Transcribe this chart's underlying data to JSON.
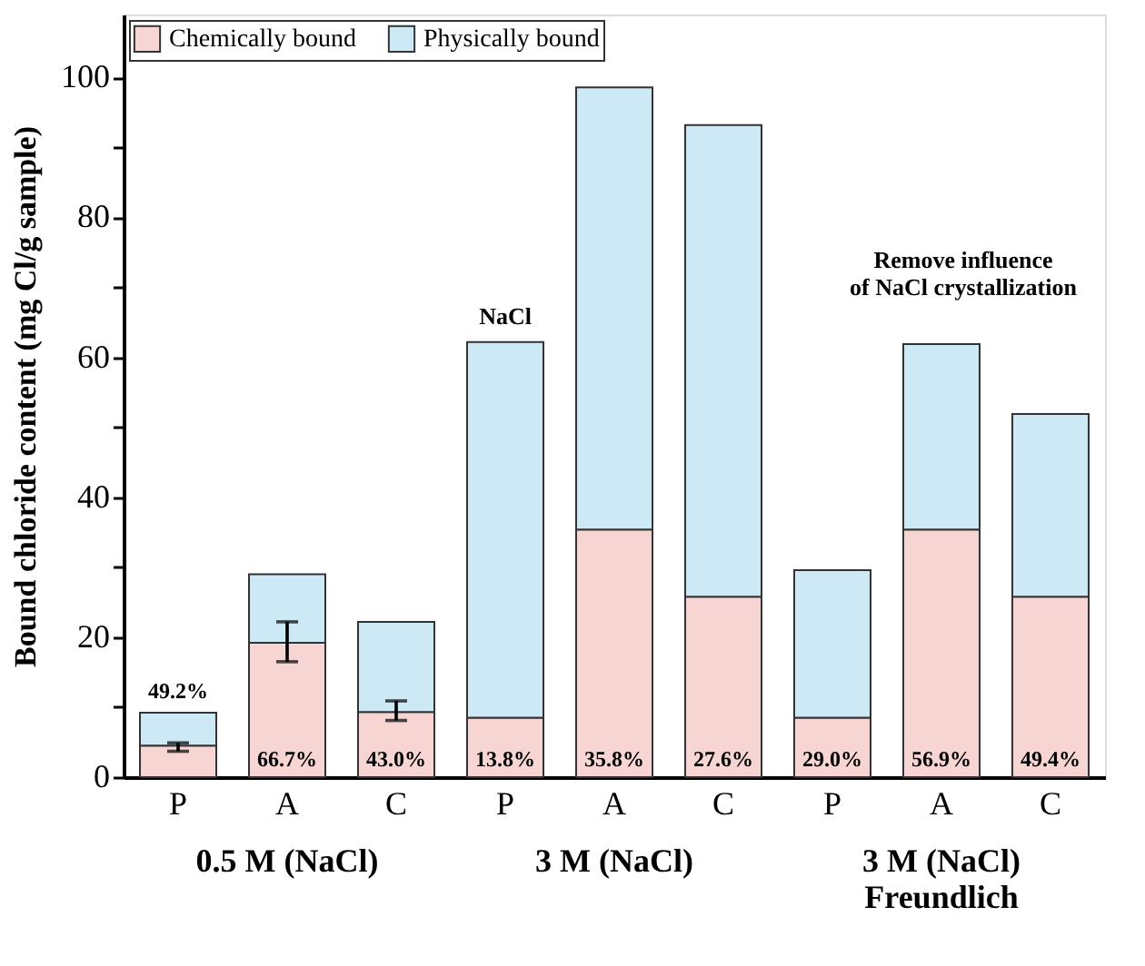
{
  "chart_data": {
    "type": "bar",
    "stacked": true,
    "ylabel": "Bound chloride content (mg Cl/g sample)",
    "categories": [
      "P",
      "A",
      "C",
      "P",
      "A",
      "C",
      "P",
      "A",
      "C"
    ],
    "series": [
      {
        "name": "Chemically bound",
        "color": "#f6d5d3",
        "values": [
          4.5,
          19.2,
          9.3,
          8.5,
          35.4,
          25.8,
          8.5,
          35.4,
          25.8
        ],
        "errors": [
          [
            3.7,
            4.9
          ],
          [
            16.5,
            22.2
          ],
          [
            8.1,
            10.9
          ],
          null,
          null,
          null,
          null,
          null,
          null
        ]
      },
      {
        "name": "Physically bound",
        "color": "#cde9f5",
        "values": [
          4.7,
          9.8,
          12.9,
          53.7,
          63.2,
          67.4,
          21.1,
          26.5,
          26.1
        ]
      }
    ],
    "ylim": [
      0,
      109
    ],
    "yticks": [
      0,
      {
        "value": 10,
        "label": null
      },
      20,
      {
        "value": 30,
        "label": null
      },
      40,
      {
        "value": 50,
        "label": null
      },
      60,
      {
        "value": 70,
        "label": null
      },
      80,
      {
        "value": 90,
        "label": null
      },
      100
    ],
    "legend": "top left",
    "grid": false,
    "annotations": [
      "0.5 M (NaCl)",
      "3 M (NaCl)",
      "3 M (NaCl)\nFreundlich",
      "NaCl",
      "Remove influence of NaCl crystallization",
      "49.2%",
      "66.7%",
      "43.0%",
      "13.8%",
      "35.8%",
      "27.6%",
      "29.0%",
      "56.9%",
      "49.4%"
    ]
  }
}
